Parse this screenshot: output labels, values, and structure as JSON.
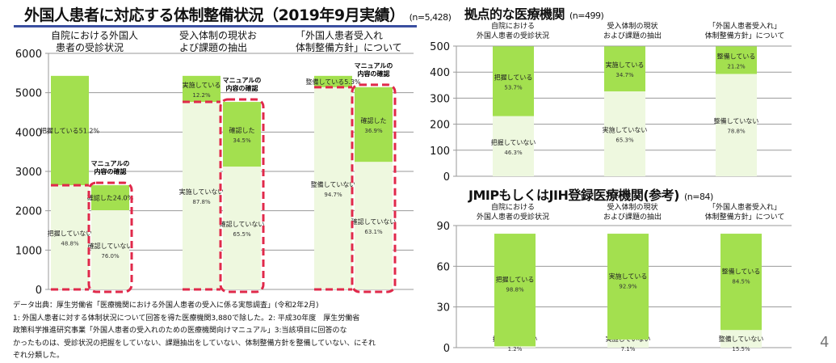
{
  "main_title": "外国人患者に対応する体制整備状況（2019年9月実績）",
  "main_n": "(n=5,428)",
  "page_number": "4",
  "source_note": {
    "lines": [
      "データ出典：厚生労働省「医療機関における外国人患者の受入に係る実態調査」(令和2年2月)",
      "1: 外国人患者に対する体制状況について回答を得た医療機関3,880で除した。2: 平成30年度　厚生労働省",
      "政策科学推進研究事業「外国人患者の受入れのための医療機関向けマニュアル」3:当該項目に回答のな",
      "かったものは、受診状況の把握をしていない、課題抽出をしていない、体制整備方針を整備していない、にそれ",
      "ぞれ分類した。"
    ]
  },
  "colors": {
    "dark_green": "#a3e04f",
    "light_green": "#eef8df",
    "dash_red": "#e0294a",
    "grid": "#9a9a9a",
    "rule": "#3a4fa0"
  },
  "chart_data": [
    {
      "type": "bar",
      "stacked": true,
      "title": "外国人患者に対応する体制整備状況（2019年9月実績）",
      "ylim": [
        0,
        6000
      ],
      "yticks": [
        "0",
        "1000",
        "2000",
        "3000",
        "4000",
        "5000",
        "6000"
      ],
      "categories": [
        {
          "label_lines": [
            "自院における外国人",
            "患者の受診状況"
          ]
        },
        {
          "label_lines": [
            "受入体制の現状お",
            "よび課題の抽出"
          ]
        },
        {
          "label_lines": [
            "「外国人患者受入れ",
            "体制整備方針」について"
          ]
        }
      ],
      "annotation": [
        "マニュアルの",
        "内容の確認"
      ],
      "bars": [
        {
          "group": 0,
          "kind": "main",
          "segments": [
            {
              "value": 2649,
              "shade": "light",
              "label": "把握していない",
              "pct": "48.8%"
            },
            {
              "value": 2779,
              "shade": "dark",
              "label": "把握している",
              "pct": "51.2%"
            }
          ]
        },
        {
          "group": 0,
          "kind": "manual",
          "segments": [
            {
              "value": 2013,
              "shade": "light",
              "label": "確認していない",
              "pct": "76.0%"
            },
            {
              "value": 636,
              "shade": "dark",
              "label": "確認した",
              "pct": "24.0%"
            }
          ]
        },
        {
          "group": 1,
          "kind": "main",
          "segments": [
            {
              "value": 4766,
              "shade": "light",
              "label": "実施していない",
              "pct": "87.8%"
            },
            {
              "value": 662,
              "shade": "dark",
              "label": "実施している",
              "pct": "12.2%"
            }
          ]
        },
        {
          "group": 1,
          "kind": "manual",
          "segments": [
            {
              "value": 3122,
              "shade": "light",
              "label": "確認していない",
              "pct": "65.5%"
            },
            {
              "value": 1644,
              "shade": "dark",
              "label": "確認した",
              "pct": "34.5%"
            }
          ]
        },
        {
          "group": 2,
          "kind": "main",
          "segments": [
            {
              "value": 5140,
              "shade": "light",
              "label": "整備していない",
              "pct": "94.7%"
            },
            {
              "value": 288,
              "shade": "dark",
              "label": "整備している",
              "pct": "5.3%"
            }
          ]
        },
        {
          "group": 2,
          "kind": "manual",
          "segments": [
            {
              "value": 3243,
              "shade": "light",
              "label": "確認していない",
              "pct": "63.1%"
            },
            {
              "value": 1897,
              "shade": "dark",
              "label": "確認した",
              "pct": "36.9%"
            }
          ]
        }
      ]
    },
    {
      "type": "bar",
      "stacked": true,
      "title": "拠点的な医療機関",
      "n": "(n=499)",
      "ylim": [
        0,
        500
      ],
      "yticks": [
        "0",
        "100",
        "200",
        "300",
        "400",
        "500"
      ],
      "categories": [
        {
          "label_lines": [
            "自院における",
            "外国人患者の受診状況"
          ]
        },
        {
          "label_lines": [
            "受入体制の現状",
            "および課題の抽出"
          ]
        },
        {
          "label_lines": [
            "「外国人患者受入れ」",
            "体制整備方針」について"
          ]
        }
      ],
      "bars": [
        {
          "segments": [
            {
              "value": 231,
              "shade": "light",
              "label": "把握していない",
              "pct": "46.3%"
            },
            {
              "value": 268,
              "shade": "dark",
              "label": "把握している",
              "pct": "53.7%"
            }
          ]
        },
        {
          "segments": [
            {
              "value": 326,
              "shade": "light",
              "label": "実施していない",
              "pct": "65.3%"
            },
            {
              "value": 173,
              "shade": "dark",
              "label": "実施している",
              "pct": "34.7%"
            }
          ]
        },
        {
          "segments": [
            {
              "value": 393,
              "shade": "light",
              "label": "整備していない",
              "pct": "78.8%"
            },
            {
              "value": 106,
              "shade": "dark",
              "label": "整備している",
              "pct": "21.2%"
            }
          ]
        }
      ]
    },
    {
      "type": "bar",
      "stacked": true,
      "title": "JMIPもしくはJIH登録医療機関(参考)",
      "n": "(n=84)",
      "ylim": [
        0,
        90
      ],
      "yticks": [
        "0",
        "30",
        "60",
        "90"
      ],
      "categories": [
        {
          "label_lines": [
            "自院における",
            "外国人患者の受診状況"
          ]
        },
        {
          "label_lines": [
            "受入体制の現状",
            "および課題の抽出"
          ]
        },
        {
          "label_lines": [
            "「外国人患者受入れ」",
            "体制整備方針」について"
          ]
        }
      ],
      "bars": [
        {
          "segments": [
            {
              "value": 1,
              "shade": "light",
              "label": "把握していない",
              "pct": "1.2%"
            },
            {
              "value": 83,
              "shade": "dark",
              "label": "把握している",
              "pct": "98.8%"
            }
          ]
        },
        {
          "segments": [
            {
              "value": 6,
              "shade": "light",
              "label": "実施していない",
              "pct": "7.1%"
            },
            {
              "value": 78,
              "shade": "dark",
              "label": "実施している",
              "pct": "92.9%"
            }
          ]
        },
        {
          "segments": [
            {
              "value": 13,
              "shade": "light",
              "label": "整備していない",
              "pct": "15.5%"
            },
            {
              "value": 71,
              "shade": "dark",
              "label": "整備している",
              "pct": "84.5%"
            }
          ]
        }
      ]
    }
  ]
}
